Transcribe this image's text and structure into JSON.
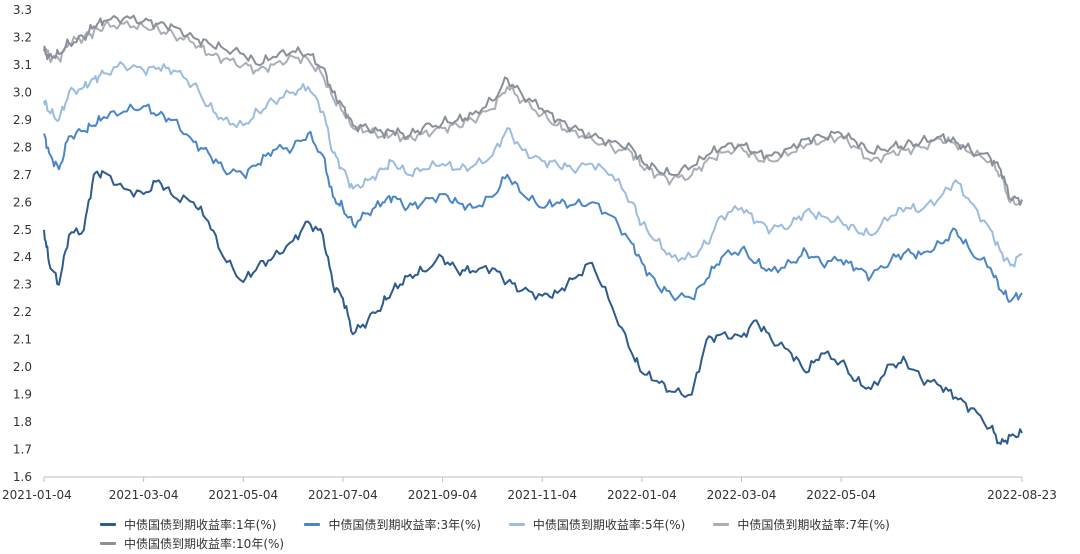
{
  "chart_data": {
    "type": "line",
    "title": "",
    "xlabel": "",
    "ylabel": "",
    "ylim": [
      1.6,
      3.3
    ],
    "y_ticks": [
      "1.6",
      "1.7",
      "1.8",
      "1.9",
      "2.0",
      "2.1",
      "2.2",
      "2.3",
      "2.4",
      "2.5",
      "2.6",
      "2.7",
      "2.8",
      "2.9",
      "3.0",
      "3.1",
      "3.2",
      "3.3"
    ],
    "x_tick_labels": [
      "2021-01-04",
      "2021-03-04",
      "2021-05-04",
      "2021-07-04",
      "2021-09-04",
      "2021-11-04",
      "2022-01-04",
      "2022-03-04",
      "2022-05-04",
      "2022-08-23"
    ],
    "x_ticks_month": [
      0,
      2,
      4,
      6,
      8,
      10,
      12,
      14,
      16,
      19.63
    ],
    "x_range_month": [
      0,
      19.63
    ],
    "grid": false,
    "legend_position": "bottom",
    "series": [
      {
        "name": "中债国债到期收益率:1年(%)",
        "color": "#2e5c8e",
        "x": [
          0,
          0.1,
          0.3,
          0.5,
          0.8,
          1.0,
          1.2,
          1.6,
          2.0,
          2.3,
          2.6,
          3.0,
          3.3,
          3.6,
          4.0,
          4.3,
          4.6,
          5.0,
          5.3,
          5.6,
          5.8,
          6.0,
          6.2,
          6.5,
          6.8,
          7.0,
          7.3,
          7.6,
          8.0,
          8.3,
          8.6,
          9.0,
          9.3,
          9.6,
          10.0,
          10.3,
          10.6,
          11.0,
          11.4,
          11.8,
          12.0,
          12.3,
          12.6,
          13.0,
          13.3,
          13.6,
          14.0,
          14.3,
          14.6,
          15.0,
          15.3,
          15.6,
          16.0,
          16.3,
          16.6,
          17.0,
          17.3,
          17.6,
          18.0,
          18.3,
          18.6,
          19.0,
          19.2,
          19.4,
          19.63
        ],
        "values": [
          2.5,
          2.38,
          2.3,
          2.48,
          2.5,
          2.7,
          2.71,
          2.65,
          2.63,
          2.68,
          2.62,
          2.6,
          2.53,
          2.4,
          2.31,
          2.37,
          2.4,
          2.46,
          2.53,
          2.48,
          2.3,
          2.25,
          2.12,
          2.17,
          2.23,
          2.28,
          2.33,
          2.35,
          2.4,
          2.35,
          2.35,
          2.36,
          2.31,
          2.28,
          2.26,
          2.27,
          2.32,
          2.38,
          2.22,
          2.05,
          1.98,
          1.95,
          1.91,
          1.9,
          2.1,
          2.12,
          2.11,
          2.17,
          2.1,
          2.05,
          1.98,
          2.05,
          2.02,
          1.95,
          1.92,
          2.01,
          2.02,
          1.96,
          1.93,
          1.89,
          1.85,
          1.78,
          1.72,
          1.75,
          1.76
        ]
      },
      {
        "name": "中债国债到期收益率:3年(%)",
        "color": "#4a86c8",
        "x": [
          0,
          0.1,
          0.3,
          0.5,
          0.8,
          1.0,
          1.2,
          1.6,
          2.0,
          2.3,
          2.6,
          3.0,
          3.3,
          3.6,
          4.0,
          4.3,
          4.6,
          5.0,
          5.3,
          5.6,
          5.8,
          6.0,
          6.2,
          6.5,
          6.8,
          7.0,
          7.3,
          7.6,
          8.0,
          8.3,
          8.6,
          9.0,
          9.3,
          9.6,
          10.0,
          10.3,
          10.6,
          11.0,
          11.4,
          11.8,
          12.0,
          12.3,
          12.6,
          13.0,
          13.3,
          13.6,
          14.0,
          14.3,
          14.6,
          15.0,
          15.3,
          15.6,
          16.0,
          16.3,
          16.6,
          17.0,
          17.3,
          17.6,
          18.0,
          18.3,
          18.6,
          19.0,
          19.2,
          19.4,
          19.63
        ],
        "values": [
          2.85,
          2.78,
          2.72,
          2.84,
          2.86,
          2.88,
          2.91,
          2.93,
          2.95,
          2.92,
          2.9,
          2.82,
          2.78,
          2.72,
          2.7,
          2.74,
          2.79,
          2.8,
          2.85,
          2.77,
          2.62,
          2.58,
          2.52,
          2.56,
          2.6,
          2.62,
          2.58,
          2.6,
          2.63,
          2.6,
          2.58,
          2.62,
          2.7,
          2.63,
          2.58,
          2.6,
          2.59,
          2.6,
          2.55,
          2.45,
          2.38,
          2.3,
          2.26,
          2.25,
          2.32,
          2.4,
          2.43,
          2.38,
          2.35,
          2.38,
          2.42,
          2.38,
          2.39,
          2.36,
          2.33,
          2.39,
          2.42,
          2.41,
          2.45,
          2.5,
          2.42,
          2.36,
          2.28,
          2.24,
          2.27
        ]
      },
      {
        "name": "中债国债到期收益率:5年(%)",
        "color": "#9cbde0",
        "x": [
          0,
          0.1,
          0.3,
          0.5,
          0.8,
          1.0,
          1.2,
          1.6,
          2.0,
          2.3,
          2.6,
          3.0,
          3.3,
          3.6,
          4.0,
          4.3,
          4.6,
          5.0,
          5.3,
          5.6,
          5.8,
          6.0,
          6.2,
          6.5,
          6.8,
          7.0,
          7.3,
          7.6,
          8.0,
          8.3,
          8.6,
          9.0,
          9.3,
          9.6,
          10.0,
          10.3,
          10.6,
          11.0,
          11.4,
          11.8,
          12.0,
          12.3,
          12.6,
          13.0,
          13.3,
          13.6,
          14.0,
          14.3,
          14.6,
          15.0,
          15.3,
          15.6,
          16.0,
          16.3,
          16.6,
          17.0,
          17.3,
          17.6,
          18.0,
          18.3,
          18.6,
          19.0,
          19.2,
          19.4,
          19.63
        ],
        "values": [
          2.97,
          2.93,
          2.9,
          3.0,
          3.02,
          3.05,
          3.07,
          3.1,
          3.08,
          3.09,
          3.08,
          3.03,
          2.95,
          2.9,
          2.88,
          2.93,
          2.97,
          3.0,
          3.02,
          2.93,
          2.78,
          2.72,
          2.65,
          2.68,
          2.72,
          2.75,
          2.7,
          2.72,
          2.74,
          2.72,
          2.73,
          2.77,
          2.87,
          2.79,
          2.75,
          2.74,
          2.72,
          2.74,
          2.7,
          2.6,
          2.52,
          2.46,
          2.4,
          2.4,
          2.45,
          2.55,
          2.58,
          2.53,
          2.5,
          2.52,
          2.57,
          2.55,
          2.53,
          2.5,
          2.48,
          2.55,
          2.58,
          2.57,
          2.62,
          2.68,
          2.6,
          2.5,
          2.42,
          2.37,
          2.41
        ]
      },
      {
        "name": "中债国债到期收益率:7年(%)",
        "color": "#a9afb9",
        "x": [
          0,
          0.1,
          0.3,
          0.5,
          0.8,
          1.0,
          1.2,
          1.6,
          2.0,
          2.3,
          2.6,
          3.0,
          3.3,
          3.6,
          4.0,
          4.3,
          4.6,
          5.0,
          5.3,
          5.6,
          5.8,
          6.0,
          6.2,
          6.5,
          6.8,
          7.0,
          7.3,
          7.6,
          8.0,
          8.3,
          8.6,
          9.0,
          9.3,
          9.6,
          10.0,
          10.3,
          10.6,
          11.0,
          11.4,
          11.8,
          12.0,
          12.3,
          12.6,
          13.0,
          13.3,
          13.6,
          14.0,
          14.3,
          14.6,
          15.0,
          15.3,
          15.6,
          16.0,
          16.3,
          16.6,
          17.0,
          17.3,
          17.6,
          18.0,
          18.3,
          18.6,
          19.0,
          19.2,
          19.4,
          19.63
        ],
        "values": [
          3.17,
          3.13,
          3.12,
          3.18,
          3.2,
          3.22,
          3.24,
          3.25,
          3.24,
          3.23,
          3.21,
          3.18,
          3.14,
          3.12,
          3.1,
          3.08,
          3.1,
          3.13,
          3.12,
          3.06,
          2.98,
          2.93,
          2.87,
          2.86,
          2.84,
          2.85,
          2.83,
          2.85,
          2.87,
          2.88,
          2.9,
          2.94,
          3.02,
          2.97,
          2.92,
          2.88,
          2.86,
          2.83,
          2.8,
          2.78,
          2.73,
          2.7,
          2.68,
          2.7,
          2.75,
          2.78,
          2.8,
          2.76,
          2.75,
          2.78,
          2.81,
          2.82,
          2.84,
          2.8,
          2.75,
          2.78,
          2.79,
          2.8,
          2.83,
          2.81,
          2.78,
          2.75,
          2.7,
          2.6,
          2.6
        ]
      },
      {
        "name": "中债国债到期收益率:10年(%)",
        "color": "#8b9098",
        "x": [
          0,
          0.1,
          0.3,
          0.5,
          0.8,
          1.0,
          1.2,
          1.6,
          2.0,
          2.3,
          2.6,
          3.0,
          3.3,
          3.6,
          4.0,
          4.3,
          4.6,
          5.0,
          5.3,
          5.6,
          5.8,
          6.0,
          6.2,
          6.5,
          6.8,
          7.0,
          7.3,
          7.6,
          8.0,
          8.3,
          8.6,
          9.0,
          9.3,
          9.6,
          10.0,
          10.3,
          10.6,
          11.0,
          11.4,
          11.8,
          12.0,
          12.3,
          12.6,
          13.0,
          13.3,
          13.6,
          14.0,
          14.3,
          14.6,
          15.0,
          15.3,
          15.6,
          16.0,
          16.3,
          16.6,
          17.0,
          17.3,
          17.6,
          18.0,
          18.3,
          18.6,
          19.0,
          19.2,
          19.4,
          19.63
        ],
        "values": [
          3.15,
          3.13,
          3.14,
          3.18,
          3.2,
          3.24,
          3.26,
          3.27,
          3.26,
          3.25,
          3.24,
          3.2,
          3.18,
          3.16,
          3.14,
          3.1,
          3.13,
          3.15,
          3.14,
          3.09,
          3.0,
          2.95,
          2.88,
          2.87,
          2.85,
          2.86,
          2.84,
          2.87,
          2.89,
          2.9,
          2.92,
          2.97,
          3.05,
          2.99,
          2.94,
          2.9,
          2.87,
          2.84,
          2.82,
          2.8,
          2.75,
          2.72,
          2.7,
          2.73,
          2.77,
          2.8,
          2.81,
          2.78,
          2.77,
          2.8,
          2.83,
          2.84,
          2.85,
          2.82,
          2.78,
          2.8,
          2.81,
          2.82,
          2.84,
          2.82,
          2.79,
          2.76,
          2.72,
          2.61,
          2.61
        ]
      }
    ]
  }
}
